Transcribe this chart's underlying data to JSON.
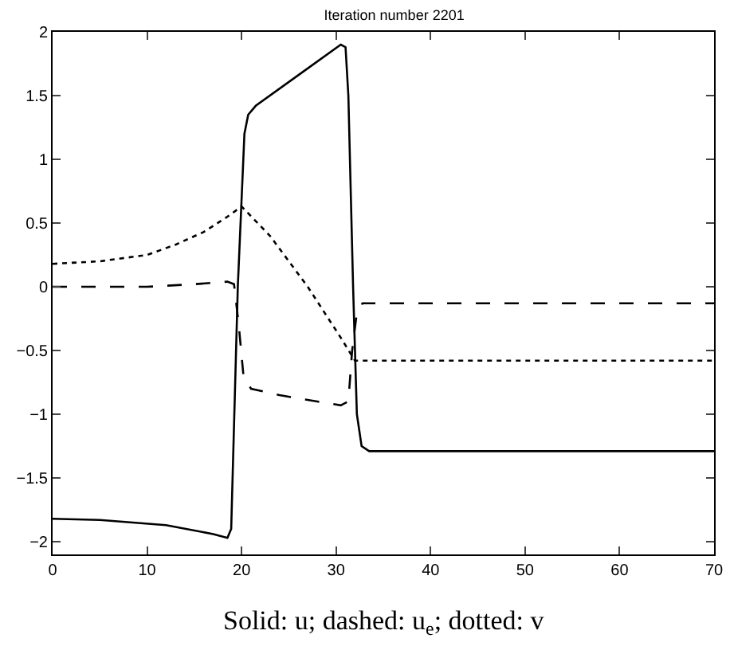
{
  "chart_data": {
    "type": "line",
    "title": "Iteration number 2201",
    "xlim": [
      0,
      70
    ],
    "xticks": [
      0,
      10,
      20,
      30,
      40,
      50,
      60,
      70
    ],
    "ylim": [
      -2.1,
      2
    ],
    "yticks": [
      -2,
      -1.5,
      -1,
      -0.5,
      0,
      0.5,
      1,
      1.5,
      2
    ],
    "annotations": [
      "Solid: u; dashed: u$_{e}$; dotted: v"
    ],
    "series": [
      {
        "color": "#000000",
        "line_style": "solid",
        "x": [
          0,
          5,
          12,
          17,
          18.5,
          18.9,
          19.6,
          20.3,
          20.7,
          21.5,
          26,
          30.5,
          31,
          31.3,
          31.8,
          32.2,
          32.7,
          33.5,
          70
        ],
        "values": [
          -1.82,
          -1.83,
          -1.87,
          -1.94,
          -1.97,
          -1.9,
          0,
          1.2,
          1.35,
          1.42,
          1.66,
          1.9,
          1.88,
          1.5,
          0,
          -1,
          -1.25,
          -1.29,
          -1.29
        ]
      },
      {
        "color": "#000000",
        "line_style": "dashed",
        "x": [
          0,
          10,
          15,
          18.5,
          19.2,
          19.7,
          20.2,
          21,
          24,
          28,
          30.5,
          31.3,
          31.7,
          32.2,
          32.8,
          70
        ],
        "values": [
          0,
          0,
          0.02,
          0.04,
          0.02,
          -0.3,
          -0.7,
          -0.8,
          -0.85,
          -0.9,
          -0.93,
          -0.9,
          -0.5,
          -0.2,
          -0.13,
          -0.13
        ]
      },
      {
        "color": "#000000",
        "line_style": "dotted",
        "x": [
          0,
          5,
          10,
          13,
          16,
          18.5,
          20,
          23,
          27,
          30.5,
          32,
          70
        ],
        "values": [
          0.18,
          0.2,
          0.25,
          0.33,
          0.43,
          0.55,
          0.63,
          0.4,
          0,
          -0.4,
          -0.58,
          -0.58
        ]
      }
    ]
  }
}
